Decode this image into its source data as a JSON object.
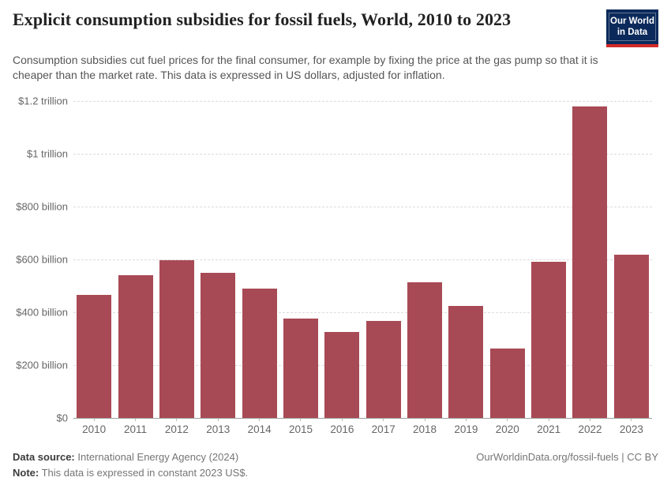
{
  "header": {
    "title": "Explicit consumption subsidies for fossil fuels, World, 2010 to 2023",
    "subtitle": "Consumption subsidies cut fuel prices for the final consumer, for example by fixing the price at the gas pump so that it is cheaper than the market rate. This data is expressed in US dollars, adjusted for inflation.",
    "logo": {
      "line1": "Our World",
      "line2": "in Data",
      "bg_color": "#0b2a5b",
      "accent_color": "#d12a29"
    }
  },
  "chart_data": {
    "type": "bar",
    "title": "Explicit consumption subsidies for fossil fuels, World, 2010 to 2023",
    "xlabel": "",
    "ylabel": "",
    "unit": "US$, constant 2023 prices",
    "categories": [
      "2010",
      "2011",
      "2012",
      "2013",
      "2014",
      "2015",
      "2016",
      "2017",
      "2018",
      "2019",
      "2020",
      "2021",
      "2022",
      "2023"
    ],
    "values": [
      465,
      540,
      597,
      549,
      490,
      376,
      325,
      367,
      513,
      423,
      263,
      590,
      1180,
      616
    ],
    "values_unit": "billion US$",
    "ylim": [
      0,
      1200
    ],
    "ytick_values": [
      0,
      200,
      400,
      600,
      800,
      1000,
      1200
    ],
    "ytick_labels": [
      "$0",
      "$200 billion",
      "$400 billion",
      "$600 billion",
      "$800 billion",
      "$1 trillion",
      "$1.2 trillion"
    ],
    "grid": "horizontal-dashed",
    "legend": "none",
    "bar_color": "#a84a55"
  },
  "footer": {
    "source_label": "Data source:",
    "source_value": " International Energy Agency (2024)",
    "note_label": "Note:",
    "note_value": " This data is expressed in constant 2023 US$.",
    "link": "OurWorldinData.org/fossil-fuels | CC BY"
  }
}
